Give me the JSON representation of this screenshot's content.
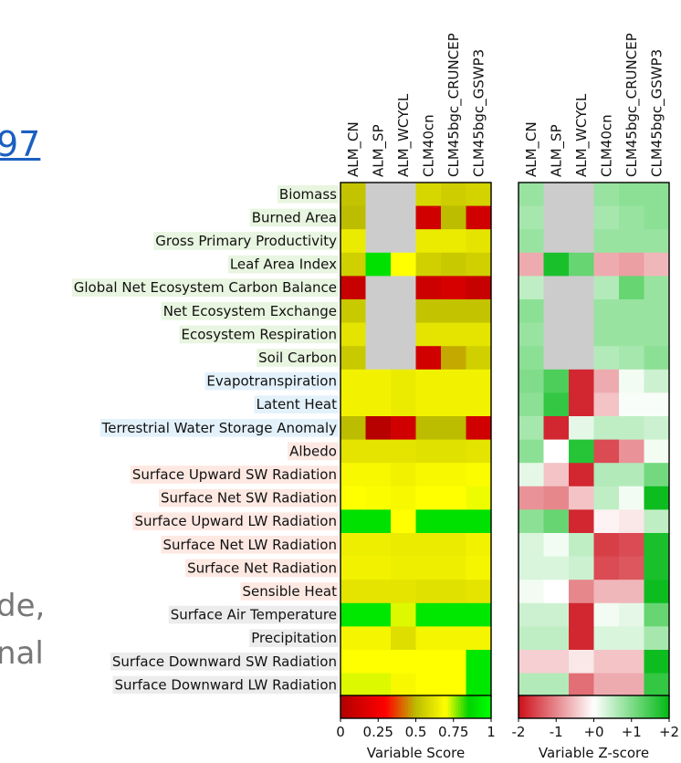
{
  "background_fragments": {
    "top": "•",
    "link": "97",
    "line1": "de,",
    "line2": "nal"
  },
  "colors": {
    "missing": "#cccccc",
    "group_ecosystem": "#e8f5e0",
    "group_hydrology": "#e3f1fb",
    "group_radiation": "#fde8e2",
    "group_forcing": "#ececec"
  },
  "chart_data": [
    {
      "type": "heatmap",
      "colorbar_title": "Variable Score",
      "colorbar_ticks": [
        "0",
        "0.25",
        "0.5",
        "0.75",
        "1"
      ],
      "colorbar_range": [
        0,
        1
      ],
      "columns": [
        "ALM_CN",
        "ALM_SP",
        "ALM_WCYCL",
        "CLM40cn",
        "CLM45bgc_CRUNCEP",
        "CLM45bgc_GSWP3"
      ],
      "rows": [
        {
          "label": "Biomass",
          "group": "ecosystem",
          "values": [
            0.52,
            null,
            null,
            0.58,
            0.55,
            0.57
          ]
        },
        {
          "label": "Burned Area",
          "group": "ecosystem",
          "values": [
            0.5,
            null,
            null,
            0.12,
            0.5,
            0.12
          ]
        },
        {
          "label": "Gross Primary Productivity",
          "group": "ecosystem",
          "values": [
            0.64,
            null,
            null,
            0.64,
            0.64,
            0.62
          ]
        },
        {
          "label": "Leaf Area Index",
          "group": "ecosystem",
          "values": [
            0.56,
            0.9,
            0.7,
            0.56,
            0.54,
            0.56
          ]
        },
        {
          "label": "Global Net Ecosystem Carbon Balance",
          "group": "ecosystem",
          "values": [
            0.08,
            null,
            null,
            0.1,
            0.14,
            0.08
          ]
        },
        {
          "label": "Net Ecosystem Exchange",
          "group": "ecosystem",
          "values": [
            0.54,
            null,
            null,
            0.52,
            0.52,
            0.52
          ]
        },
        {
          "label": "Ecosystem Respiration",
          "group": "ecosystem",
          "values": [
            0.62,
            null,
            null,
            0.62,
            0.62,
            0.62
          ]
        },
        {
          "label": "Soil Carbon",
          "group": "ecosystem",
          "values": [
            0.54,
            null,
            null,
            0.12,
            0.48,
            0.56
          ]
        },
        {
          "label": "Evapotranspiration",
          "group": "hydrology",
          "values": [
            0.66,
            0.66,
            0.64,
            0.66,
            0.66,
            0.66
          ]
        },
        {
          "label": "Latent Heat",
          "group": "hydrology",
          "values": [
            0.66,
            0.66,
            0.64,
            0.66,
            0.66,
            0.66
          ]
        },
        {
          "label": "Terrestrial Water Storage Anomaly",
          "group": "hydrology",
          "values": [
            0.5,
            0.02,
            0.12,
            0.5,
            0.5,
            0.12
          ]
        },
        {
          "label": "Albedo",
          "group": "radiation",
          "values": [
            0.62,
            0.62,
            0.62,
            0.61,
            0.61,
            0.62
          ]
        },
        {
          "label": "Surface Upward SW Radiation",
          "group": "radiation",
          "values": [
            0.68,
            0.68,
            0.66,
            0.68,
            0.68,
            0.69
          ]
        },
        {
          "label": "Surface Net SW Radiation",
          "group": "radiation",
          "values": [
            0.7,
            0.69,
            0.68,
            0.7,
            0.7,
            0.71
          ]
        },
        {
          "label": "Surface Upward LW Radiation",
          "group": "radiation",
          "values": [
            0.9,
            0.9,
            0.7,
            0.9,
            0.9,
            0.9
          ]
        },
        {
          "label": "Surface Net LW Radiation",
          "group": "radiation",
          "values": [
            0.65,
            0.65,
            0.64,
            0.64,
            0.64,
            0.66
          ]
        },
        {
          "label": "Surface Net Radiation",
          "group": "radiation",
          "values": [
            0.66,
            0.66,
            0.65,
            0.65,
            0.65,
            0.67
          ]
        },
        {
          "label": "Sensible Heat",
          "group": "radiation",
          "values": [
            0.62,
            0.62,
            0.62,
            0.61,
            0.61,
            0.62
          ]
        },
        {
          "label": "Surface Air Temperature",
          "group": "forcing",
          "values": [
            0.92,
            0.92,
            0.72,
            0.92,
            0.92,
            0.92
          ]
        },
        {
          "label": "Precipitation",
          "group": "forcing",
          "values": [
            0.67,
            0.67,
            0.6,
            0.67,
            0.67,
            0.67
          ]
        },
        {
          "label": "Surface Downward SW Radiation",
          "group": "forcing",
          "values": [
            0.7,
            0.7,
            0.7,
            0.7,
            0.7,
            0.92
          ]
        },
        {
          "label": "Surface Downward LW Radiation",
          "group": "forcing",
          "values": [
            0.72,
            0.72,
            0.68,
            0.7,
            0.7,
            0.92
          ]
        }
      ]
    },
    {
      "type": "heatmap",
      "colorbar_title": "Variable Z-score",
      "colorbar_ticks": [
        "-2",
        "-1",
        "+0",
        "+1",
        "+2"
      ],
      "colorbar_range": [
        -2,
        2
      ],
      "columns": [
        "ALM_CN",
        "ALM_SP",
        "ALM_WCYCL",
        "CLM40cn",
        "CLM45bgc_CRUNCEP",
        "CLM45bgc_GSWP3"
      ],
      "values": [
        [
          0.8,
          null,
          null,
          0.8,
          0.9,
          0.9
        ],
        [
          0.7,
          null,
          null,
          0.7,
          0.8,
          0.9
        ],
        [
          0.8,
          null,
          null,
          0.8,
          0.8,
          0.8
        ],
        [
          -0.7,
          1.8,
          1.2,
          -0.7,
          -0.8,
          -0.6
        ],
        [
          0.5,
          null,
          null,
          0.6,
          1.2,
          0.8
        ],
        [
          0.9,
          null,
          null,
          0.8,
          0.8,
          0.8
        ],
        [
          0.8,
          null,
          null,
          0.8,
          0.8,
          0.8
        ],
        [
          0.9,
          null,
          null,
          0.6,
          0.7,
          0.9
        ],
        [
          1.0,
          1.4,
          -1.8,
          -0.7,
          0.1,
          0.4
        ],
        [
          0.9,
          1.6,
          -1.8,
          -0.5,
          0.05,
          0.05
        ],
        [
          0.7,
          -1.8,
          0.2,
          0.5,
          0.5,
          0.4
        ],
        [
          0.9,
          0.0,
          1.7,
          -1.5,
          -0.9,
          0.1
        ],
        [
          0.2,
          -0.5,
          -1.8,
          0.6,
          0.6,
          1.1
        ],
        [
          -0.9,
          -1.0,
          -0.5,
          0.5,
          0.1,
          1.9
        ],
        [
          0.9,
          1.2,
          -1.8,
          -0.1,
          -0.2,
          0.5
        ],
        [
          0.3,
          0.1,
          0.5,
          -1.6,
          -1.5,
          1.8
        ],
        [
          0.3,
          0.3,
          0.4,
          -1.5,
          -1.4,
          1.8
        ],
        [
          0.1,
          0.0,
          -1.0,
          -0.6,
          -0.6,
          1.9
        ],
        [
          0.4,
          0.4,
          -1.8,
          0.1,
          0.2,
          1.2
        ],
        [
          0.5,
          0.5,
          -1.8,
          0.3,
          0.3,
          0.7
        ],
        [
          -0.4,
          -0.4,
          -0.2,
          -0.5,
          -0.5,
          1.9
        ],
        [
          0.6,
          0.6,
          -1.2,
          -0.7,
          -0.7,
          1.6
        ]
      ]
    }
  ]
}
